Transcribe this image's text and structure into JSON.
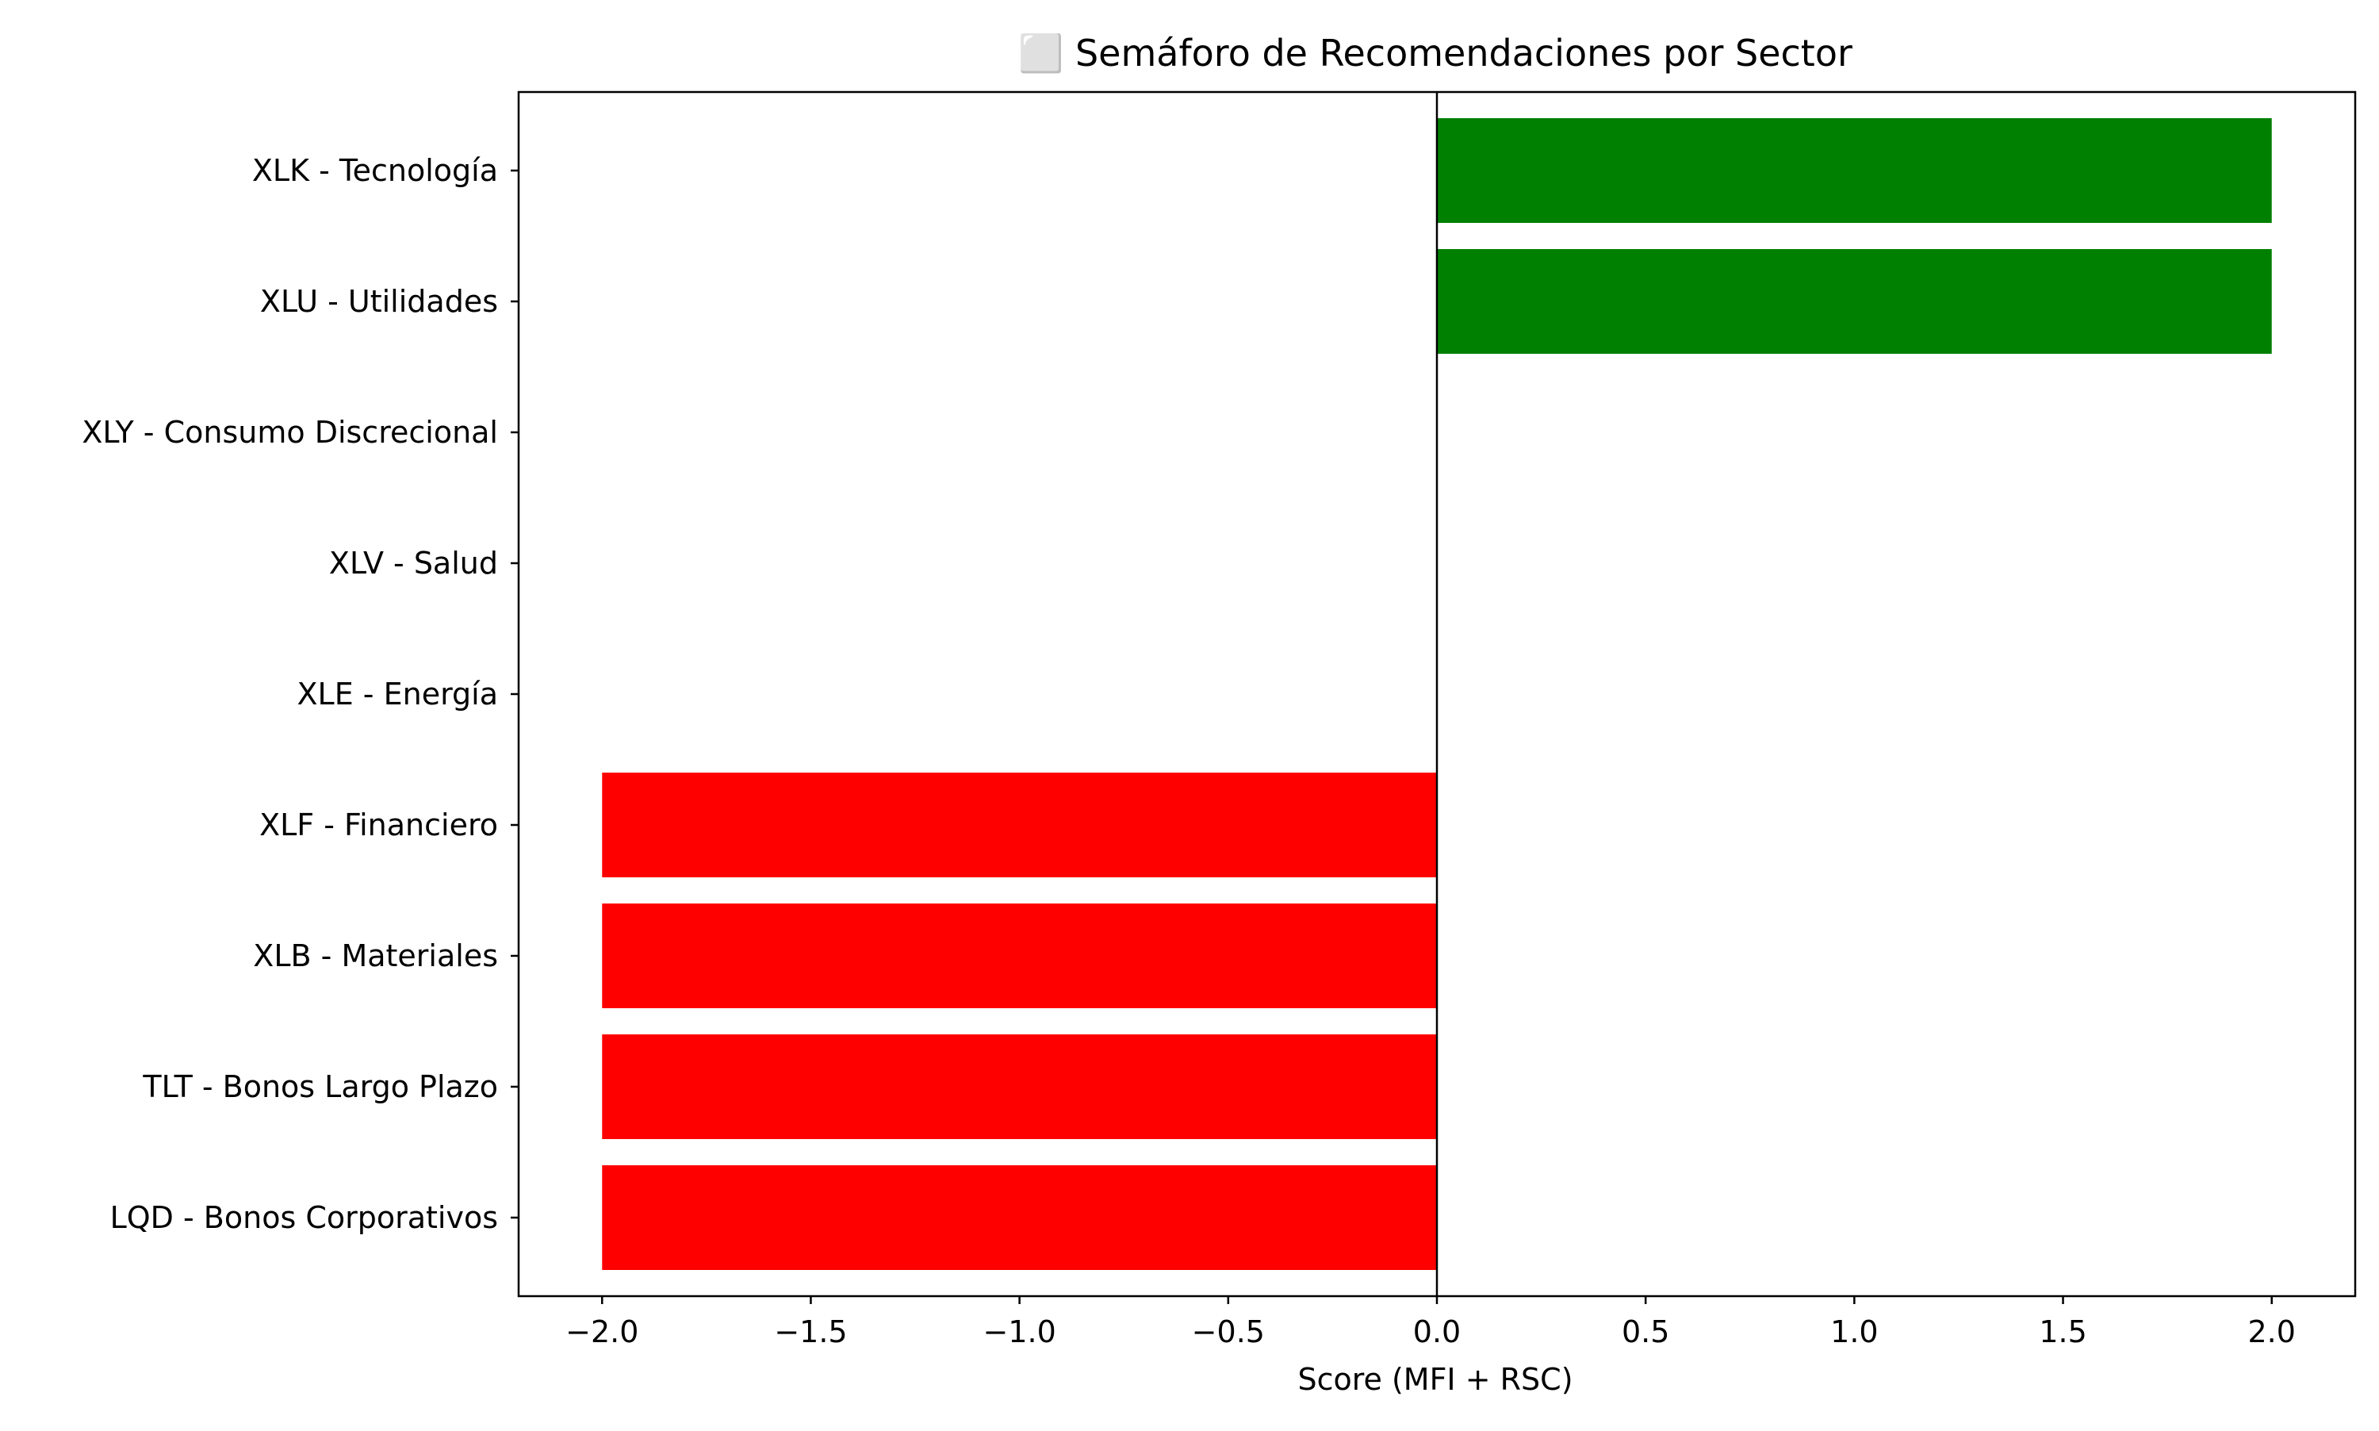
{
  "chart_data": {
    "type": "bar",
    "orientation": "horizontal",
    "title": "⬜ Semáforo de Recomendaciones por Sector",
    "xlabel": "Score (MFI + RSC)",
    "ylabel": "",
    "xlim": [
      -2.2,
      2.2
    ],
    "x_ticks": [
      -2.0,
      -1.5,
      -1.0,
      -0.5,
      0.0,
      0.5,
      1.0,
      1.5,
      2.0
    ],
    "x_tick_labels": [
      "−2.0",
      "−1.5",
      "−1.0",
      "−0.5",
      "0.0",
      "0.5",
      "1.0",
      "1.5",
      "2.0"
    ],
    "grid": false,
    "zero_line": true,
    "categories": [
      "XLK - Tecnología",
      "XLU - Utilidades",
      "XLY - Consumo Discrecional",
      "XLV - Salud",
      "XLE - Energía",
      "XLF - Financiero",
      "XLB - Materiales",
      "TLT - Bonos Largo Plazo",
      "LQD - Bonos Corporativos"
    ],
    "values": [
      2,
      2,
      0,
      0,
      0,
      -2,
      -2,
      -2,
      -2
    ],
    "colors": {
      "positive": "#008000",
      "negative": "#ff0000",
      "neutral": "#ffff00"
    }
  }
}
